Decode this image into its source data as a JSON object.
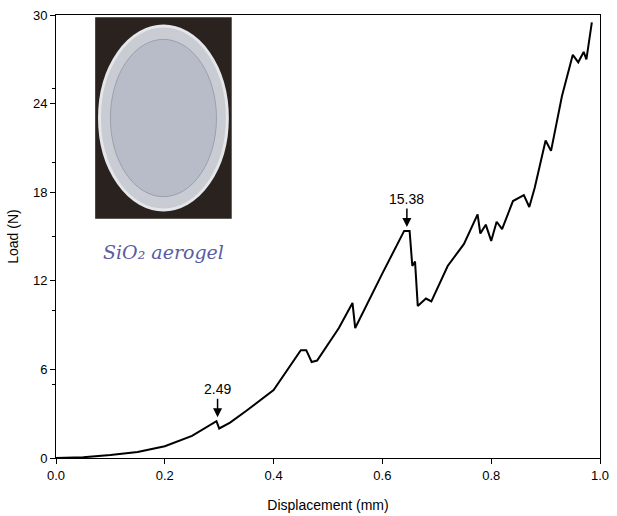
{
  "chart_data": {
    "type": "line",
    "x_label": "Displacement (mm)",
    "y_label": "Load (N)",
    "color": "#000000",
    "grid": false,
    "xlim": [
      0,
      1.0
    ],
    "ylim": [
      0,
      30
    ],
    "xticks": [
      {
        "value": 0,
        "label": "0.0"
      },
      0.2,
      0.4,
      0.6,
      0.8,
      {
        "value": 1.0,
        "label": "1.0"
      }
    ],
    "yticks": [
      0,
      6,
      12,
      18,
      24,
      30
    ],
    "x": [
      0,
      0.05,
      0.1,
      0.15,
      0.2,
      0.25,
      0.295,
      0.3,
      0.32,
      0.35,
      0.4,
      0.45,
      0.46,
      0.47,
      0.48,
      0.52,
      0.545,
      0.55,
      0.6,
      0.64,
      0.65,
      0.655,
      0.66,
      0.665,
      0.68,
      0.69,
      0.72,
      0.75,
      0.775,
      0.78,
      0.79,
      0.8,
      0.81,
      0.82,
      0.84,
      0.86,
      0.87,
      0.88,
      0.9,
      0.91,
      0.93,
      0.95,
      0.96,
      0.97,
      0.975,
      0.985
    ],
    "values": [
      0,
      0.05,
      0.2,
      0.4,
      0.8,
      1.5,
      2.49,
      2.0,
      2.4,
      3.2,
      4.6,
      7.3,
      7.3,
      6.5,
      6.6,
      8.8,
      10.5,
      8.8,
      12.5,
      15.38,
      15.38,
      13.0,
      13.3,
      10.3,
      10.8,
      10.6,
      13.0,
      14.5,
      16.5,
      15.2,
      15.8,
      14.7,
      16.0,
      15.5,
      17.4,
      17.8,
      17.0,
      18.3,
      21.5,
      20.8,
      24.5,
      27.3,
      26.8,
      27.5,
      27.0,
      29.5
    ],
    "annotations": [
      {
        "text": "2.49",
        "x": 0.297,
        "y": 2.49
      },
      {
        "text": "15.38",
        "x": 0.645,
        "y": 15.38
      }
    ],
    "inset_label": "SiO₂ aerogel"
  }
}
